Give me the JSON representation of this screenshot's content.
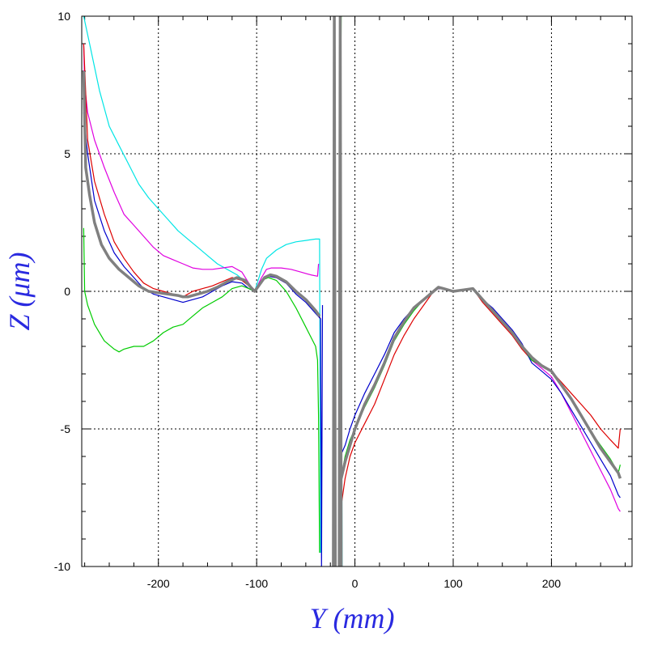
{
  "chart_data": {
    "type": "line",
    "xlabel": "Y (mm)",
    "ylabel": "Z (μm)",
    "xlim": [
      -278,
      282
    ],
    "ylim": [
      -10,
      10
    ],
    "x_ticks": [
      -200,
      -100,
      0,
      100,
      200
    ],
    "x_tick_labels": [
      "-200",
      "-100",
      "0",
      "100",
      "200"
    ],
    "y_ticks": [
      -10,
      -5,
      0,
      5,
      10
    ],
    "y_tick_labels": [
      "-10",
      "-5",
      "0",
      "5",
      "10"
    ],
    "grid": true,
    "series": [
      {
        "color": "#00e5e5",
        "segments": [
          {
            "x": [
              -276,
              -270,
              -260,
              -250,
              -240,
              -230,
              -220,
              -210,
              -200,
              -190,
              -180,
              -170,
              -160,
              -150,
              -140,
              -130,
              -120,
              -110,
              -102,
              -95,
              -90,
              -80,
              -70,
              -60,
              -50,
              -40,
              -36,
              -35
            ],
            "y": [
              10,
              9,
              7.3,
              6.0,
              5.3,
              4.6,
              3.9,
              3.4,
              3.0,
              2.6,
              2.2,
              1.9,
              1.6,
              1.3,
              1.0,
              0.8,
              0.6,
              0.3,
              0.0,
              0.8,
              1.2,
              1.5,
              1.7,
              1.8,
              1.85,
              1.9,
              1.9,
              -9.5
            ]
          },
          {
            "x": [
              -15,
              -14,
              -13
            ],
            "y": [
              10,
              0,
              -10
            ]
          }
        ]
      },
      {
        "color": "#e000e0",
        "segments": [
          {
            "x": [
              -276,
              -275,
              -272,
              -265,
              -255,
              -245,
              -235,
              -225,
              -215,
              -205,
              -195,
              -185,
              -175,
              -165,
              -155,
              -145,
              -135,
              -125,
              -115,
              -108,
              -102,
              -95,
              -90,
              -85,
              -75,
              -65,
              -55,
              -45,
              -38,
              -37
            ],
            "y": [
              9,
              7.5,
              6.5,
              5.5,
              4.5,
              3.6,
              2.8,
              2.4,
              2.0,
              1.6,
              1.3,
              1.15,
              1.0,
              0.85,
              0.8,
              0.8,
              0.85,
              0.9,
              0.7,
              0.3,
              0.0,
              0.5,
              0.8,
              0.85,
              0.85,
              0.8,
              0.7,
              0.6,
              0.55,
              1.0
            ]
          },
          {
            "x": [
              180,
              190,
              200,
              210,
              220,
              230,
              240,
              250,
              260,
              268,
              270
            ],
            "y": [
              -2.5,
              -2.8,
              -3.1,
              -3.7,
              -4.4,
              -5.1,
              -5.8,
              -6.5,
              -7.2,
              -7.9,
              -8.0
            ]
          }
        ]
      },
      {
        "color": "#dd0000",
        "segments": [
          {
            "x": [
              -276,
              -272,
              -265,
              -255,
              -245,
              -235,
              -225,
              -215,
              -205,
              -195,
              -185,
              -175,
              -165,
              -155,
              -145,
              -135,
              -125,
              -115,
              -108,
              -102,
              -95,
              -88,
              -80,
              -70,
              -60,
              -50,
              -40,
              -35
            ],
            "y": [
              9,
              5.5,
              4.0,
              2.8,
              1.8,
              1.2,
              0.7,
              0.3,
              0.1,
              0.0,
              -0.1,
              -0.2,
              0.0,
              0.1,
              0.2,
              0.35,
              0.5,
              0.4,
              0.2,
              0.0,
              0.4,
              0.55,
              0.5,
              0.3,
              0.0,
              -0.3,
              -0.7,
              -1.0
            ]
          },
          {
            "x": [
              -14,
              -10,
              -5,
              0,
              10,
              20,
              30,
              40,
              50,
              60,
              70,
              80,
              85,
              90,
              100,
              110,
              120,
              130,
              140,
              150,
              160,
              170,
              180,
              190,
              200,
              210,
              220,
              230,
              240,
              250,
              260,
              268,
              270
            ],
            "y": [
              -7.8,
              -6.8,
              -6.0,
              -5.5,
              -4.8,
              -4.1,
              -3.2,
              -2.3,
              -1.6,
              -1.0,
              -0.5,
              0.0,
              0.1,
              0.1,
              0.0,
              0.05,
              0.1,
              -0.4,
              -0.8,
              -1.2,
              -1.6,
              -2.1,
              -2.5,
              -2.7,
              -2.9,
              -3.3,
              -3.7,
              -4.1,
              -4.5,
              -5.0,
              -5.4,
              -5.7,
              -5.0
            ]
          }
        ]
      },
      {
        "color": "#0000cc",
        "segments": [
          {
            "x": [
              -276,
              -272,
              -265,
              -255,
              -245,
              -235,
              -225,
              -215,
              -205,
              -195,
              -185,
              -175,
              -165,
              -155,
              -145,
              -135,
              -125,
              -115,
              -108,
              -102,
              -95,
              -88,
              -80,
              -70,
              -60,
              -50,
              -40,
              -35,
              -34,
              -33
            ],
            "y": [
              6.5,
              5.0,
              3.3,
              2.2,
              1.4,
              0.9,
              0.5,
              0.1,
              -0.1,
              -0.2,
              -0.3,
              -0.4,
              -0.3,
              -0.2,
              0.0,
              0.2,
              0.35,
              0.3,
              0.1,
              0.0,
              0.4,
              0.55,
              0.5,
              0.3,
              -0.1,
              -0.4,
              -0.8,
              -1.0,
              -10,
              -0.5
            ]
          },
          {
            "x": [
              -15,
              -10,
              -5,
              0,
              10,
              20,
              30,
              40,
              50,
              60,
              70,
              80,
              85,
              90,
              100,
              110,
              120,
              130,
              140,
              150,
              160,
              170,
              180,
              190,
              200,
              210,
              220,
              230,
              240,
              250,
              260,
              268,
              270
            ],
            "y": [
              -6.0,
              -5.6,
              -5.0,
              -4.5,
              -3.7,
              -3.0,
              -2.3,
              -1.5,
              -1.0,
              -0.6,
              -0.3,
              0.0,
              0.1,
              0.1,
              0.0,
              0.05,
              0.1,
              -0.3,
              -0.6,
              -1.0,
              -1.4,
              -1.9,
              -2.6,
              -2.9,
              -3.2,
              -3.7,
              -4.3,
              -4.9,
              -5.5,
              -6.1,
              -6.7,
              -7.4,
              -7.5
            ]
          }
        ]
      },
      {
        "color": "#00cc00",
        "segments": [
          {
            "x": [
              -276,
              -275,
              -272,
              -265,
              -255,
              -245,
              -240,
              -235,
              -225,
              -215,
              -205,
              -195,
              -185,
              -175,
              -165,
              -155,
              -145,
              -135,
              -125,
              -115,
              -108,
              -102,
              -95,
              -88,
              -80,
              -70,
              -60,
              -50,
              -40,
              -38,
              -37,
              -36
            ],
            "y": [
              2.3,
              0.0,
              -0.5,
              -1.2,
              -1.8,
              -2.1,
              -2.2,
              -2.1,
              -2.0,
              -2.0,
              -1.8,
              -1.5,
              -1.3,
              -1.2,
              -0.9,
              -0.6,
              -0.4,
              -0.2,
              0.1,
              0.2,
              0.1,
              0.0,
              0.4,
              0.5,
              0.4,
              0.0,
              -0.6,
              -1.3,
              -2.0,
              -2.5,
              -4.5,
              -9.5
            ]
          },
          {
            "x": [
              -16,
              -14,
              -13
            ],
            "y": [
              0,
              10,
              10
            ]
          },
          {
            "x": [
              -14,
              -10,
              -5,
              0,
              10,
              20,
              30,
              40,
              50,
              60,
              70,
              80,
              85,
              90,
              100,
              110,
              120,
              130,
              140,
              150,
              160,
              170,
              180,
              190,
              200,
              210,
              220,
              230,
              240,
              250,
              260,
              268,
              270
            ],
            "y": [
              -6.8,
              -6.0,
              -5.4,
              -5.0,
              -4.2,
              -3.5,
              -2.7,
              -1.8,
              -1.2,
              -0.7,
              -0.3,
              0.0,
              0.15,
              0.1,
              0.0,
              0.05,
              0.1,
              -0.3,
              -0.7,
              -1.1,
              -1.5,
              -2.0,
              -2.5,
              -2.7,
              -2.9,
              -3.4,
              -3.9,
              -4.5,
              -5.1,
              -5.6,
              -6.1,
              -6.6,
              -6.3
            ]
          }
        ]
      },
      {
        "color": "#808080",
        "width": 3.5,
        "segments": [
          {
            "x": [
              -276,
              -274,
              -270,
              -265,
              -258,
              -250,
              -240,
              -230,
              -220,
              -210,
              -200,
              -190,
              -180,
              -175,
              -170,
              -160,
              -150,
              -140,
              -130,
              -120,
              -112,
              -106,
              -102,
              -98,
              -92,
              -86,
              -80,
              -70,
              -60,
              -50,
              -40,
              -36
            ],
            "y": [
              8,
              4.5,
              3.5,
              2.5,
              1.7,
              1.2,
              0.8,
              0.5,
              0.2,
              0.0,
              -0.05,
              -0.1,
              -0.15,
              -0.2,
              -0.2,
              -0.1,
              0.0,
              0.15,
              0.35,
              0.5,
              0.4,
              0.15,
              0.0,
              0.2,
              0.5,
              0.6,
              0.55,
              0.35,
              0.0,
              -0.3,
              -0.7,
              -0.9
            ]
          },
          {
            "x": [
              -22,
              -21,
              -20
            ],
            "y": [
              -10,
              10,
              -10
            ]
          },
          {
            "x": [
              -16,
              -15,
              -14
            ],
            "y": [
              -10,
              10,
              -10
            ]
          },
          {
            "x": [
              -14,
              -10,
              -5,
              0,
              10,
              20,
              30,
              40,
              50,
              60,
              70,
              80,
              85,
              90,
              100,
              110,
              120,
              130,
              140,
              150,
              160,
              170,
              180,
              190,
              200,
              210,
              220,
              230,
              240,
              250,
              260,
              268,
              270
            ],
            "y": [
              -6.8,
              -6.2,
              -5.6,
              -5.0,
              -4.1,
              -3.4,
              -2.6,
              -1.7,
              -1.1,
              -0.6,
              -0.3,
              0.0,
              0.15,
              0.1,
              0.0,
              0.05,
              0.1,
              -0.3,
              -0.7,
              -1.1,
              -1.5,
              -2.0,
              -2.4,
              -2.7,
              -2.9,
              -3.4,
              -3.9,
              -4.5,
              -5.1,
              -5.7,
              -6.2,
              -6.6,
              -6.8
            ]
          }
        ]
      }
    ]
  }
}
